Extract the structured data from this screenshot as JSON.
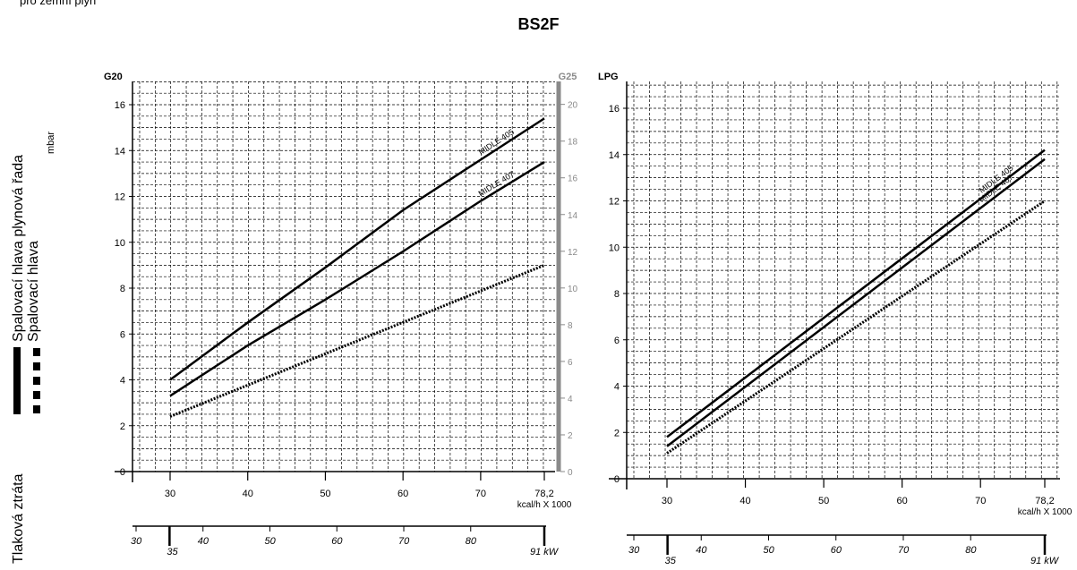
{
  "top_note": "pro zemní plyn",
  "title": "BS2F",
  "legend": {
    "y_label_1": "Spalovací hlava plynová řada",
    "y_label_2": "Spalovací hlava",
    "unit": "mbar",
    "loss_label": "Tlaková ztráta",
    "solid_line_style": "solid",
    "dotted_line_style": "dotted"
  },
  "colors": {
    "grid": "#000000",
    "line": "#000000",
    "g25_axis": "#8a8a8a"
  },
  "chart_data": [
    {
      "type": "line",
      "gas_label_left": "G20",
      "gas_label_right": "G25",
      "x_label": "kcal/h X 1000",
      "x_unit_kw": "kW",
      "x_ticks": [
        "30",
        "40",
        "50",
        "60",
        "70",
        "78,2"
      ],
      "x_ticks_values": [
        30,
        40,
        50,
        60,
        70,
        78.2
      ],
      "xlim": [
        25,
        80
      ],
      "ylim": [
        0,
        17
      ],
      "y_ticks": [
        "0",
        "2",
        "4",
        "6",
        "8",
        "10",
        "12",
        "14",
        "16"
      ],
      "y2_ticks": [
        "0",
        "2",
        "4",
        "6",
        "8",
        "10",
        "12",
        "14",
        "16",
        "18",
        "20"
      ],
      "y2lim": [
        0,
        21.25
      ],
      "kw_ticks": [
        "30",
        "35",
        "40",
        "50",
        "60",
        "70",
        "80",
        "91"
      ],
      "kw_ticks_values": [
        30,
        35,
        40,
        50,
        60,
        70,
        80,
        91
      ],
      "kw_lim": [
        29,
        91
      ],
      "grid": true,
      "series": [
        {
          "name": "MIDLE 405",
          "style": "solid",
          "x": [
            30,
            40,
            50,
            60,
            70,
            78.2
          ],
          "y": [
            4.0,
            6.5,
            8.9,
            11.4,
            13.6,
            15.4
          ]
        },
        {
          "name": "MIDLE 407",
          "style": "solid",
          "x": [
            30,
            40,
            50,
            60,
            70,
            78.2
          ],
          "y": [
            3.3,
            5.5,
            7.5,
            9.6,
            11.8,
            13.5
          ]
        },
        {
          "name": "",
          "style": "dotted",
          "x": [
            30,
            78.2
          ],
          "y": [
            2.4,
            9.0
          ]
        }
      ]
    },
    {
      "type": "line",
      "gas_label_left": "LPG",
      "x_label": "kcal/h X 1000",
      "x_unit_kw": "kW",
      "x_ticks": [
        "30",
        "40",
        "50",
        "60",
        "70",
        "78,2"
      ],
      "x_ticks_values": [
        30,
        40,
        50,
        60,
        70,
        78.2
      ],
      "xlim": [
        25,
        80
      ],
      "ylim": [
        0,
        17
      ],
      "y_ticks": [
        "0",
        "2",
        "4",
        "6",
        "8",
        "10",
        "12",
        "14",
        "16"
      ],
      "kw_ticks": [
        "30",
        "35",
        "40",
        "50",
        "60",
        "70",
        "80",
        "91"
      ],
      "kw_ticks_values": [
        30,
        35,
        40,
        50,
        60,
        70,
        80,
        91
      ],
      "kw_lim": [
        29,
        91
      ],
      "grid": true,
      "series": [
        {
          "name": "MIDLE 405",
          "style": "solid",
          "x": [
            30,
            78.2
          ],
          "y": [
            1.8,
            14.2
          ]
        },
        {
          "name": "MIDLE 407",
          "style": "solid",
          "x": [
            30,
            78.2
          ],
          "y": [
            1.4,
            13.8
          ]
        },
        {
          "name": "",
          "style": "dotted",
          "x": [
            30,
            78.2
          ],
          "y": [
            1.1,
            12.0
          ]
        }
      ]
    }
  ]
}
